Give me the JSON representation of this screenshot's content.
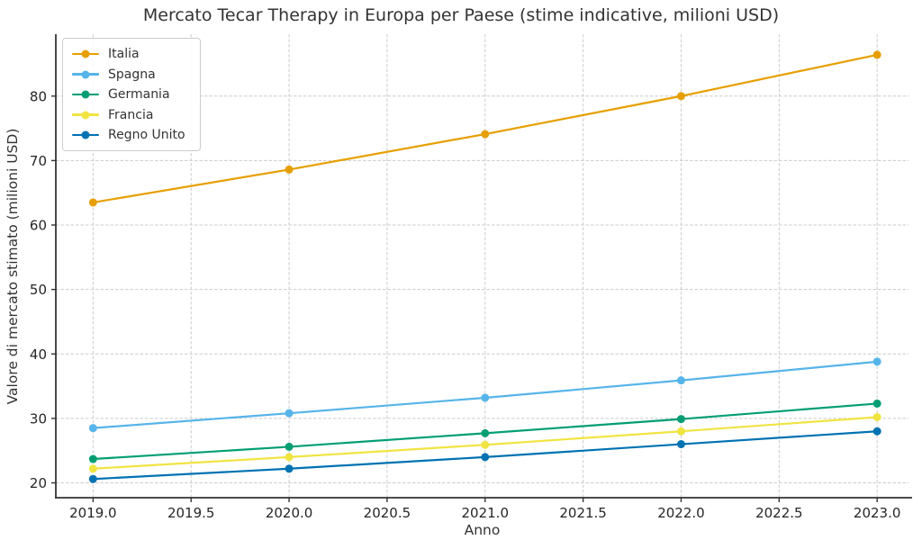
{
  "chart_data": {
    "type": "line",
    "title": "Mercato Tecar Therapy in Europa per Paese (stime indicative, milioni USD)",
    "xlabel": "Anno",
    "ylabel": "Valore di mercato stimato (milioni USD)",
    "x": [
      2019,
      2020,
      2021,
      2022,
      2023
    ],
    "series": [
      {
        "name": "Italia",
        "color": "#E69F00",
        "values": [
          63.5,
          68.6,
          74.1,
          80.0,
          86.4
        ]
      },
      {
        "name": "Spagna",
        "color": "#56B4E9",
        "values": [
          28.5,
          30.8,
          33.2,
          35.9,
          38.8
        ]
      },
      {
        "name": "Germania",
        "color": "#029E73",
        "values": [
          23.7,
          25.6,
          27.7,
          29.9,
          32.3
        ]
      },
      {
        "name": "Francia",
        "color": "#F0E442",
        "values": [
          22.2,
          24.0,
          25.9,
          28.0,
          30.2
        ]
      },
      {
        "name": "Regno Unito",
        "color": "#0072B2",
        "values": [
          20.6,
          22.2,
          24.0,
          26.0,
          28.0
        ]
      }
    ],
    "xlim": [
      2018.81,
      2023.16
    ],
    "ylim": [
      17.7,
      89.6
    ],
    "xticks": {
      "values": [
        2019.0,
        2019.5,
        2020.0,
        2020.5,
        2021.0,
        2021.5,
        2022.0,
        2022.5,
        2023.0
      ],
      "labels": [
        "2019.0",
        "2019.5",
        "2020.0",
        "2020.5",
        "2021.0",
        "2021.5",
        "2022.0",
        "2022.5",
        "2023.0"
      ]
    },
    "yticks": {
      "values": [
        20,
        30,
        40,
        50,
        60,
        70,
        80
      ],
      "labels": [
        "20",
        "30",
        "40",
        "50",
        "60",
        "70",
        "80"
      ]
    },
    "grid": true,
    "grid_style": "dashed",
    "legend_position": "upper left"
  },
  "colors": {
    "background": "#ffffff",
    "grid": "#cccccc",
    "spine": "#333333",
    "tick_text": "#262626",
    "label_text": "#333333"
  }
}
